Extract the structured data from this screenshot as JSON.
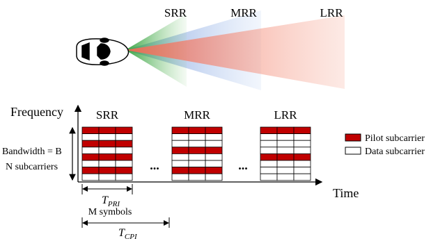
{
  "beams": {
    "short": "SRR",
    "medium": "MRR",
    "long": "LRR"
  },
  "axes": {
    "frequency": "Frequency",
    "time": "Time"
  },
  "blocks": {
    "srr": "SRR",
    "mrr": "MRR",
    "lrr": "LRR",
    "ellipsis_1": "...",
    "ellipsis_2": "..."
  },
  "bandwidth": {
    "line1": "Bandwidth = B",
    "line2": "N subcarriers"
  },
  "t_pri": {
    "symbol": "T",
    "subscript": "PRI",
    "note": "M symbols"
  },
  "t_cpi": {
    "symbol": "T",
    "subscript": "CPI"
  },
  "legend": {
    "pilot": "Pilot subcarrier",
    "data": "Data subcarrier"
  }
}
